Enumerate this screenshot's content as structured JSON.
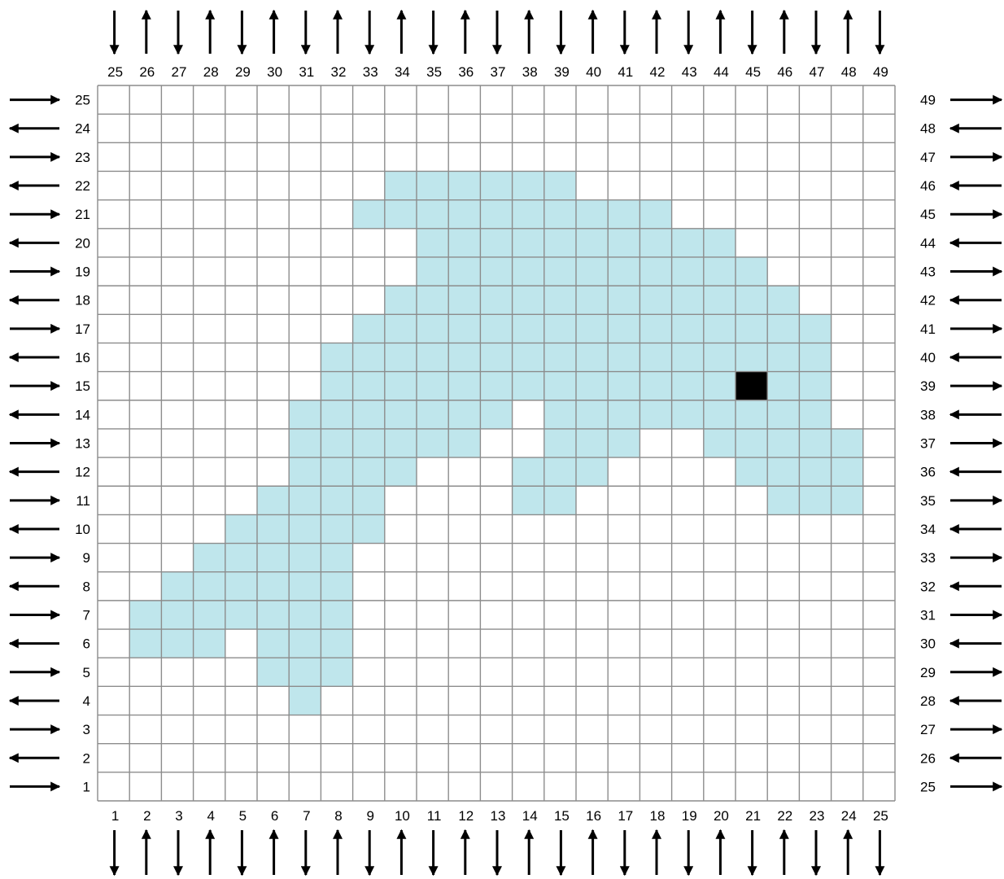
{
  "grid": {
    "columns": 25,
    "rows": 25,
    "filled_color": "#bfe6ec",
    "accent_color": "#000000",
    "empty_color": "#ffffff",
    "line_color": "#8c8c8c",
    "arrow_color": "#000000",
    "top_labels": [
      "25",
      "26",
      "27",
      "28",
      "29",
      "30",
      "31",
      "32",
      "33",
      "34",
      "35",
      "36",
      "37",
      "38",
      "39",
      "40",
      "41",
      "42",
      "43",
      "44",
      "45",
      "46",
      "47",
      "48",
      "49"
    ],
    "bottom_labels": [
      "1",
      "2",
      "3",
      "4",
      "5",
      "6",
      "7",
      "8",
      "9",
      "10",
      "11",
      "12",
      "13",
      "14",
      "15",
      "16",
      "17",
      "18",
      "19",
      "20",
      "21",
      "22",
      "23",
      "24",
      "25"
    ],
    "left_labels": [
      "25",
      "24",
      "23",
      "22",
      "21",
      "20",
      "19",
      "18",
      "17",
      "16",
      "15",
      "14",
      "13",
      "12",
      "11",
      "10",
      "9",
      "8",
      "7",
      "6",
      "5",
      "4",
      "3",
      "2",
      "1"
    ],
    "right_labels": [
      "49",
      "48",
      "47",
      "46",
      "45",
      "44",
      "43",
      "42",
      "41",
      "40",
      "39",
      "38",
      "37",
      "36",
      "35",
      "34",
      "33",
      "32",
      "31",
      "30",
      "29",
      "28",
      "27",
      "26",
      "25"
    ],
    "column_arrows": [
      "down",
      "up",
      "down",
      "up",
      "down",
      "up",
      "down",
      "up",
      "down",
      "up",
      "down",
      "up",
      "down",
      "up",
      "down",
      "up",
      "down",
      "up",
      "down",
      "up",
      "down",
      "up",
      "down",
      "up",
      "down"
    ],
    "row_arrows": [
      "right",
      "left",
      "right",
      "left",
      "right",
      "left",
      "right",
      "left",
      "right",
      "left",
      "right",
      "left",
      "right",
      "left",
      "right",
      "left",
      "right",
      "left",
      "right",
      "left",
      "right",
      "left",
      "right",
      "left",
      "right"
    ],
    "filled_cells": [
      [
        22,
        10
      ],
      [
        22,
        11
      ],
      [
        22,
        12
      ],
      [
        22,
        13
      ],
      [
        22,
        14
      ],
      [
        22,
        15
      ],
      [
        21,
        9
      ],
      [
        21,
        10
      ],
      [
        21,
        11
      ],
      [
        21,
        12
      ],
      [
        21,
        13
      ],
      [
        21,
        14
      ],
      [
        21,
        15
      ],
      [
        21,
        16
      ],
      [
        21,
        17
      ],
      [
        21,
        18
      ],
      [
        20,
        11
      ],
      [
        20,
        12
      ],
      [
        20,
        13
      ],
      [
        20,
        14
      ],
      [
        20,
        15
      ],
      [
        20,
        16
      ],
      [
        20,
        17
      ],
      [
        20,
        18
      ],
      [
        20,
        19
      ],
      [
        20,
        20
      ],
      [
        19,
        11
      ],
      [
        19,
        12
      ],
      [
        19,
        13
      ],
      [
        19,
        14
      ],
      [
        19,
        15
      ],
      [
        19,
        16
      ],
      [
        19,
        17
      ],
      [
        19,
        18
      ],
      [
        19,
        19
      ],
      [
        19,
        20
      ],
      [
        19,
        21
      ],
      [
        18,
        10
      ],
      [
        18,
        11
      ],
      [
        18,
        12
      ],
      [
        18,
        13
      ],
      [
        18,
        14
      ],
      [
        18,
        15
      ],
      [
        18,
        16
      ],
      [
        18,
        17
      ],
      [
        18,
        18
      ],
      [
        18,
        19
      ],
      [
        18,
        20
      ],
      [
        18,
        21
      ],
      [
        18,
        22
      ],
      [
        17,
        9
      ],
      [
        17,
        10
      ],
      [
        17,
        11
      ],
      [
        17,
        12
      ],
      [
        17,
        13
      ],
      [
        17,
        14
      ],
      [
        17,
        15
      ],
      [
        17,
        16
      ],
      [
        17,
        17
      ],
      [
        17,
        18
      ],
      [
        17,
        19
      ],
      [
        17,
        20
      ],
      [
        17,
        21
      ],
      [
        17,
        22
      ],
      [
        17,
        23
      ],
      [
        16,
        8
      ],
      [
        16,
        9
      ],
      [
        16,
        10
      ],
      [
        16,
        11
      ],
      [
        16,
        12
      ],
      [
        16,
        13
      ],
      [
        16,
        14
      ],
      [
        16,
        15
      ],
      [
        16,
        16
      ],
      [
        16,
        17
      ],
      [
        16,
        18
      ],
      [
        16,
        19
      ],
      [
        16,
        20
      ],
      [
        16,
        21
      ],
      [
        16,
        22
      ],
      [
        16,
        23
      ],
      [
        15,
        8
      ],
      [
        15,
        9
      ],
      [
        15,
        10
      ],
      [
        15,
        11
      ],
      [
        15,
        12
      ],
      [
        15,
        13
      ],
      [
        15,
        14
      ],
      [
        15,
        15
      ],
      [
        15,
        16
      ],
      [
        15,
        17
      ],
      [
        15,
        18
      ],
      [
        15,
        19
      ],
      [
        15,
        20
      ],
      [
        15,
        22
      ],
      [
        15,
        23
      ],
      [
        14,
        7
      ],
      [
        14,
        8
      ],
      [
        14,
        9
      ],
      [
        14,
        10
      ],
      [
        14,
        11
      ],
      [
        14,
        12
      ],
      [
        14,
        13
      ],
      [
        14,
        15
      ],
      [
        14,
        16
      ],
      [
        14,
        17
      ],
      [
        14,
        18
      ],
      [
        14,
        19
      ],
      [
        14,
        20
      ],
      [
        14,
        21
      ],
      [
        14,
        22
      ],
      [
        14,
        23
      ],
      [
        13,
        7
      ],
      [
        13,
        8
      ],
      [
        13,
        9
      ],
      [
        13,
        10
      ],
      [
        13,
        11
      ],
      [
        13,
        12
      ],
      [
        13,
        15
      ],
      [
        13,
        16
      ],
      [
        13,
        17
      ],
      [
        13,
        20
      ],
      [
        13,
        21
      ],
      [
        13,
        22
      ],
      [
        13,
        23
      ],
      [
        13,
        24
      ],
      [
        12,
        7
      ],
      [
        12,
        8
      ],
      [
        12,
        9
      ],
      [
        12,
        10
      ],
      [
        12,
        14
      ],
      [
        12,
        15
      ],
      [
        12,
        16
      ],
      [
        12,
        21
      ],
      [
        12,
        22
      ],
      [
        12,
        23
      ],
      [
        12,
        24
      ],
      [
        11,
        6
      ],
      [
        11,
        7
      ],
      [
        11,
        8
      ],
      [
        11,
        9
      ],
      [
        11,
        14
      ],
      [
        11,
        15
      ],
      [
        11,
        22
      ],
      [
        11,
        23
      ],
      [
        11,
        24
      ],
      [
        10,
        5
      ],
      [
        10,
        6
      ],
      [
        10,
        7
      ],
      [
        10,
        8
      ],
      [
        10,
        9
      ],
      [
        9,
        4
      ],
      [
        9,
        5
      ],
      [
        9,
        6
      ],
      [
        9,
        7
      ],
      [
        9,
        8
      ],
      [
        8,
        3
      ],
      [
        8,
        4
      ],
      [
        8,
        5
      ],
      [
        8,
        6
      ],
      [
        8,
        7
      ],
      [
        8,
        8
      ],
      [
        7,
        2
      ],
      [
        7,
        3
      ],
      [
        7,
        4
      ],
      [
        7,
        5
      ],
      [
        7,
        6
      ],
      [
        7,
        7
      ],
      [
        7,
        8
      ],
      [
        6,
        2
      ],
      [
        6,
        3
      ],
      [
        6,
        4
      ],
      [
        6,
        6
      ],
      [
        6,
        7
      ],
      [
        6,
        8
      ],
      [
        5,
        6
      ],
      [
        5,
        7
      ],
      [
        5,
        8
      ],
      [
        4,
        7
      ]
    ],
    "accent_cells": [
      [
        15,
        21
      ]
    ]
  }
}
